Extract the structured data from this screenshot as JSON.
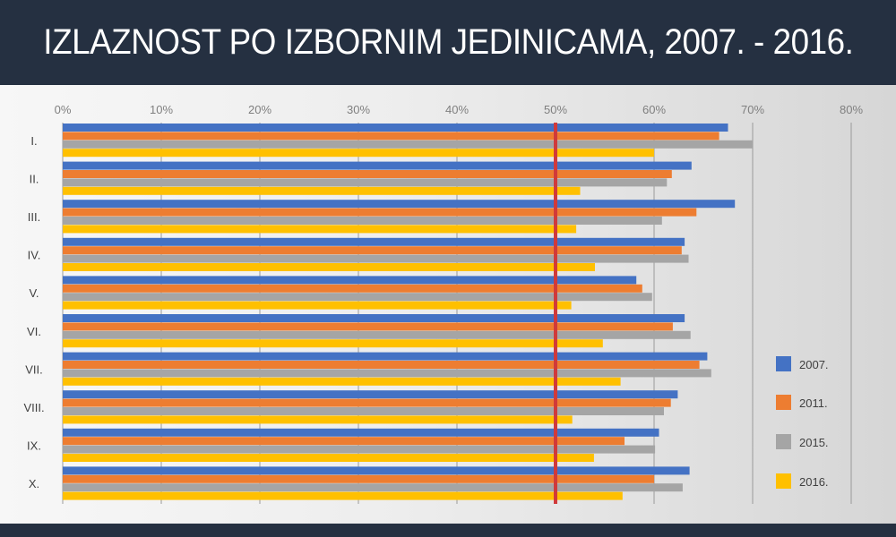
{
  "header": {
    "title": "IZLAZNOST PO IZBORNIM JEDINICAMA, 2007. - 2016."
  },
  "chart_data": {
    "type": "bar",
    "orientation": "horizontal",
    "title": "IZLAZNOST PO IZBORNIM JEDINICAMA, 2007. - 2016.",
    "categories": [
      "I.",
      "II.",
      "III.",
      "IV.",
      "V.",
      "VI.",
      "VII.",
      "VIII.",
      "IX.",
      "X."
    ],
    "xlim": [
      0,
      80
    ],
    "x_ticks": [
      "0%",
      "10%",
      "20%",
      "30%",
      "40%",
      "50%",
      "60%",
      "70%",
      "80%"
    ],
    "grid": true,
    "reference_line": {
      "value": 50,
      "color": "#d03a3a"
    },
    "legend_position": "right",
    "series": [
      {
        "name": "2007.",
        "color": "#4472c4",
        "values": [
          67.5,
          63.8,
          68.2,
          63.1,
          58.2,
          63.1,
          65.4,
          62.4,
          60.5,
          63.6
        ]
      },
      {
        "name": "2011.",
        "color": "#ed7d31",
        "values": [
          66.6,
          61.8,
          64.3,
          62.8,
          58.8,
          61.9,
          64.6,
          61.7,
          57.0,
          60.0
        ]
      },
      {
        "name": "2015.",
        "color": "#a5a5a5",
        "values": [
          70.0,
          61.3,
          60.8,
          63.5,
          59.8,
          63.7,
          65.8,
          61.0,
          60.1,
          62.9
        ]
      },
      {
        "name": "2016.",
        "color": "#ffc000",
        "values": [
          60.0,
          52.5,
          52.1,
          54.0,
          51.6,
          54.8,
          56.6,
          51.7,
          53.9,
          56.8
        ]
      }
    ]
  }
}
